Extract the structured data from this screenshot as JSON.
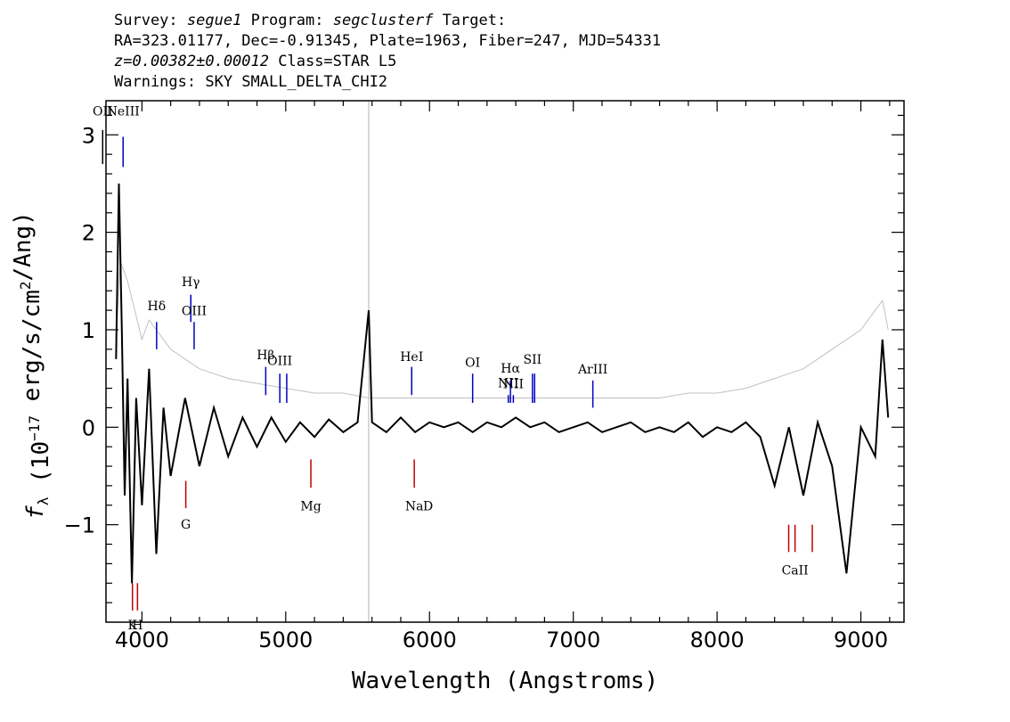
{
  "header": {
    "survey_label": "Survey:",
    "survey": "segue1",
    "program_label": "Program:",
    "program": "segclusterf",
    "target_label": "Target:",
    "coords": "RA=323.01177, Dec=-0.91345, Plate=1963, Fiber=247, MJD=54331",
    "redshift": "z=0.00382±0.00012",
    "class": "Class=STAR L5",
    "warnings": "Warnings: SKY SMALL_DELTA_CHI2"
  },
  "chart_data": {
    "type": "line",
    "xlabel": "Wavelength (Angstroms)",
    "ylabel": "f_λ (10^-17 erg/s/cm^2/Ang)",
    "xlim": [
      3750,
      9300
    ],
    "ylim": [
      -2.0,
      3.35
    ],
    "xticks": [
      4000,
      5000,
      6000,
      7000,
      8000,
      9000
    ],
    "yticks": [
      -1,
      0,
      1,
      2,
      3
    ],
    "vertical_reference_line": 5577,
    "series": [
      {
        "color": "#c0c0c0",
        "x": [
          3820,
          3850,
          3900,
          3950,
          4000,
          4050,
          4100,
          4150,
          4200,
          4300,
          4400,
          4500,
          4600,
          4800,
          5000,
          5200,
          5400,
          5577,
          5600,
          5800,
          6000,
          6200,
          6400,
          6600,
          6800,
          7000,
          7200,
          7400,
          7600,
          7800,
          8000,
          8200,
          8400,
          8500,
          8600,
          8700,
          8800,
          8900,
          9000,
          9100,
          9150,
          9190
        ],
        "y": [
          0.9,
          1.7,
          1.5,
          1.2,
          0.9,
          1.1,
          1.0,
          0.9,
          0.8,
          0.7,
          0.6,
          0.55,
          0.5,
          0.45,
          0.4,
          0.35,
          0.35,
          0.3,
          0.3,
          0.3,
          0.3,
          0.3,
          0.3,
          0.3,
          0.3,
          0.3,
          0.3,
          0.3,
          0.3,
          0.35,
          0.35,
          0.4,
          0.5,
          0.55,
          0.6,
          0.7,
          0.8,
          0.9,
          1.0,
          1.2,
          1.3,
          1.0
        ]
      },
      {
        "color": "#000000",
        "x": [
          3820,
          3840,
          3860,
          3880,
          3900,
          3930,
          3960,
          4000,
          4050,
          4100,
          4150,
          4200,
          4300,
          4400,
          4500,
          4600,
          4700,
          4800,
          4900,
          5000,
          5100,
          5200,
          5300,
          5400,
          5500,
          5577,
          5600,
          5700,
          5800,
          5900,
          6000,
          6100,
          6200,
          6300,
          6400,
          6500,
          6600,
          6700,
          6800,
          6900,
          7000,
          7100,
          7200,
          7300,
          7400,
          7500,
          7600,
          7700,
          7800,
          7900,
          8000,
          8100,
          8200,
          8300,
          8400,
          8500,
          8600,
          8700,
          8800,
          8900,
          9000,
          9100,
          9150,
          9190
        ],
        "y": [
          0.7,
          2.5,
          1.0,
          -0.7,
          0.5,
          -1.6,
          0.3,
          -0.8,
          0.6,
          -1.3,
          0.2,
          -0.5,
          0.3,
          -0.4,
          0.2,
          -0.3,
          0.1,
          -0.2,
          0.1,
          -0.15,
          0.05,
          -0.1,
          0.08,
          -0.05,
          0.05,
          1.2,
          0.05,
          -0.05,
          0.1,
          -0.05,
          0.05,
          0.0,
          0.05,
          -0.05,
          0.05,
          0.0,
          0.1,
          0.0,
          0.05,
          -0.05,
          0.0,
          0.05,
          -0.05,
          0.0,
          0.05,
          -0.05,
          0.0,
          -0.05,
          0.05,
          -0.1,
          0.0,
          -0.05,
          0.05,
          -0.1,
          -0.6,
          0.0,
          -0.7,
          0.05,
          -0.4,
          -1.5,
          0.0,
          -0.3,
          0.9,
          0.1
        ]
      }
    ]
  },
  "emission_lines": [
    {
      "label": "OII",
      "x": 3727,
      "y0": 2.7,
      "y1": 3.05,
      "color": "#000000",
      "label_y": 3.2,
      "label_pos": "above"
    },
    {
      "label": "NeIII",
      "x": 3869,
      "y0": 2.67,
      "y1": 2.98,
      "color": "#0000c0",
      "label_y": 3.2,
      "label_pos": "above"
    },
    {
      "label": "Hδ",
      "x": 4102,
      "y0": 0.8,
      "y1": 1.08,
      "color": "#0000c0",
      "label_y": 1.2,
      "label_pos": "above"
    },
    {
      "label": "Hγ",
      "x": 4340,
      "y0": 1.08,
      "y1": 1.36,
      "color": "#0000c0",
      "label_y": 1.45,
      "label_pos": "above"
    },
    {
      "label": "OIII",
      "x": 4363,
      "y0": 0.8,
      "y1": 1.08,
      "color": "#0000c0",
      "label_y": 1.15,
      "label_pos": "above"
    },
    {
      "label": "Hβ",
      "x": 4861,
      "y0": 0.33,
      "y1": 0.62,
      "color": "#0000c0",
      "label_y": 0.7,
      "label_pos": "above"
    },
    {
      "label": "OIII",
      "x": 4959,
      "y0": 0.25,
      "y1": 0.55,
      "color": "#0000c0",
      "label_y": 0.64,
      "label_pos": "above"
    },
    {
      "label": "",
      "x": 5007,
      "y0": 0.25,
      "y1": 0.55,
      "color": "#0000c0"
    },
    {
      "label": "HeI",
      "x": 5876,
      "y0": 0.33,
      "y1": 0.62,
      "color": "#0000c0",
      "label_y": 0.68,
      "label_pos": "above"
    },
    {
      "label": "OI",
      "x": 6300,
      "y0": 0.25,
      "y1": 0.55,
      "color": "#0000c0",
      "label_y": 0.62,
      "label_pos": "above"
    },
    {
      "label": "NII",
      "x": 6548,
      "y0": 0.25,
      "y1": 0.33,
      "color": "#0000c0",
      "label_y": 0.41,
      "label_pos": "above"
    },
    {
      "label": "Hα",
      "x": 6563,
      "y0": 0.25,
      "y1": 0.48,
      "color": "#0000c0",
      "label_y": 0.56,
      "label_pos": "above"
    },
    {
      "label": "NII",
      "x": 6583,
      "y0": 0.25,
      "y1": 0.33,
      "color": "#0000c0",
      "label_y": 0.4,
      "label_pos": "above"
    },
    {
      "label": "SII",
      "x": 6716,
      "y0": 0.25,
      "y1": 0.55,
      "color": "#0000c0",
      "label_y": 0.65,
      "label_pos": "above"
    },
    {
      "label": "",
      "x": 6731,
      "y0": 0.25,
      "y1": 0.55,
      "color": "#0000c0"
    },
    {
      "label": "ArIII",
      "x": 7136,
      "y0": 0.2,
      "y1": 0.48,
      "color": "#0000c0",
      "label_y": 0.55,
      "label_pos": "above"
    }
  ],
  "absorption_lines": [
    {
      "label": "K",
      "x": 3934,
      "y0": -1.6,
      "y1": -1.88,
      "color": "#c00000",
      "label_y": -1.98,
      "label_pos": "below"
    },
    {
      "label": "H",
      "x": 3969,
      "y0": -1.6,
      "y1": -1.88,
      "color": "#c00000",
      "label_y": -1.98,
      "label_pos": "below"
    },
    {
      "label": "G",
      "x": 4305,
      "y0": -0.55,
      "y1": -0.83,
      "color": "#c00000",
      "label_y": -0.95,
      "label_pos": "below"
    },
    {
      "label": "Mg",
      "x": 5175,
      "y0": -0.33,
      "y1": -0.62,
      "color": "#c00000",
      "label_y": -0.76,
      "label_pos": "below"
    },
    {
      "label": "Na",
      "x": 5894,
      "y0": -0.33,
      "y1": -0.62,
      "color": "#c00000",
      "label_y": -0.76,
      "label_pos": "below"
    },
    {
      "label": "D",
      "x": 5990,
      "y0": -0.76,
      "y1": -0.76,
      "color": "#c00000",
      "label_y": -0.76,
      "label_pos": "below",
      "text_only": true
    },
    {
      "label": "CaII",
      "x": 8542,
      "y0": -1.0,
      "y1": -1.28,
      "color": "#c00000",
      "label_y": -1.42,
      "label_pos": "below"
    },
    {
      "label": "",
      "x": 8498,
      "y0": -1.0,
      "y1": -1.28,
      "color": "#c00000"
    },
    {
      "label": "",
      "x": 8662,
      "y0": -1.0,
      "y1": -1.28,
      "color": "#c00000"
    }
  ]
}
